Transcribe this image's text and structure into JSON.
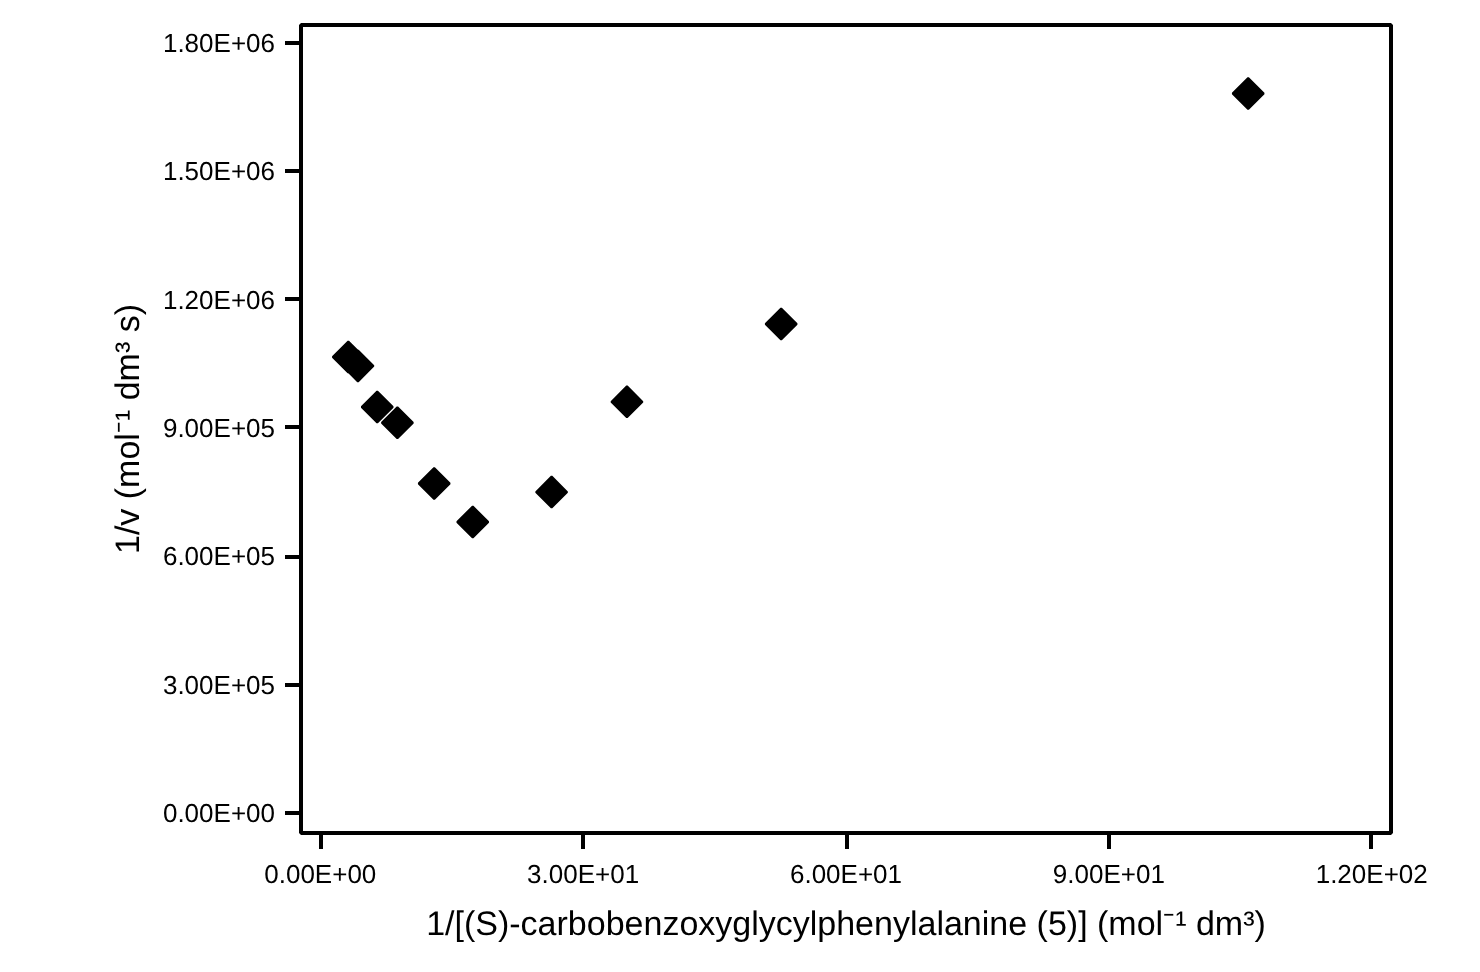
{
  "chart_data": {
    "type": "scatter",
    "xlabel": "1/[(S)-carbobenzoxyglycylphenylalanine (5)] (mol⁻¹ dm³)",
    "ylabel": "1/v (mol⁻¹ dm³ s)",
    "x": [
      3.2,
      4.3,
      6.5,
      8.8,
      13.0,
      17.4,
      26.4,
      35.0,
      52.6,
      105.9
    ],
    "series": [
      {
        "color": "#000000",
        "values": [
          1066000,
          1045000,
          949000,
          912000,
          770000,
          680000,
          750000,
          961000,
          1143000,
          1682000
        ]
      }
    ],
    "marker": "diamond",
    "xlim": [
      -2.2,
      122.2
    ],
    "ylim": [
      -47000,
      1842000
    ],
    "xticks": [
      {
        "value": 0,
        "label": "0.00E+00"
      },
      {
        "value": 30,
        "label": "3.00E+01"
      },
      {
        "value": 60,
        "label": "6.00E+01"
      },
      {
        "value": 90,
        "label": "9.00E+01"
      },
      {
        "value": 120,
        "label": "1.20E+02"
      }
    ],
    "yticks": [
      {
        "value": 0,
        "label": "0.00E+00"
      },
      {
        "value": 300000,
        "label": "3.00E+05"
      },
      {
        "value": 600000,
        "label": "6.00E+05"
      },
      {
        "value": 900000,
        "label": "9.00E+05"
      },
      {
        "value": 1200000,
        "label": "1.20E+06"
      },
      {
        "value": 1500000,
        "label": "1.50E+06"
      },
      {
        "value": 1800000,
        "label": "1.80E+06"
      }
    ],
    "grid": false
  }
}
